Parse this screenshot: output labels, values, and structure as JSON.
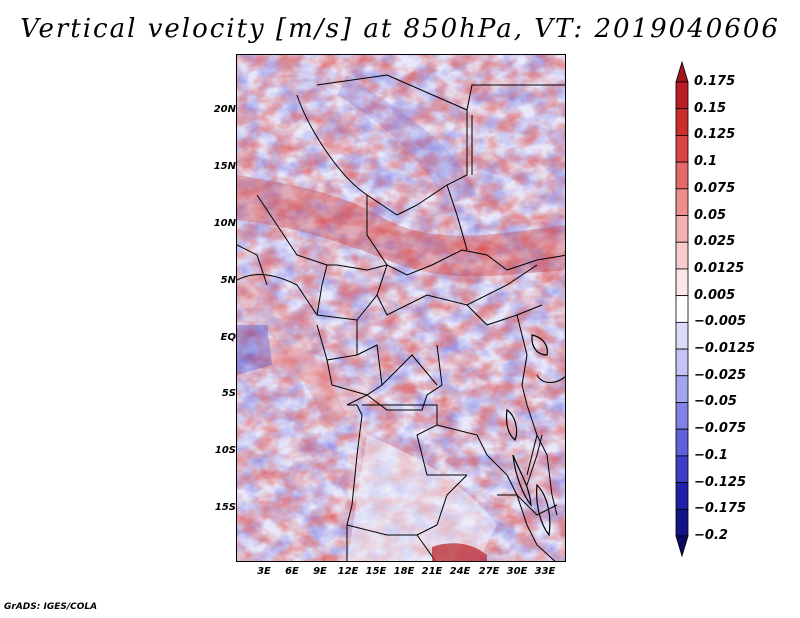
{
  "title": "Vertical velocity [m/s] at 850hPa, VT: 2019040606",
  "footer": "GrADS: IGES/COLA",
  "lat_ticks": [
    "20N",
    "15N",
    "10N",
    "5N",
    "EQ",
    "5S",
    "10S",
    "15S"
  ],
  "lon_ticks": [
    "3E",
    "6E",
    "9E",
    "12E",
    "15E",
    "18E",
    "21E",
    "24E",
    "27E",
    "30E",
    "33E"
  ],
  "colorbar": {
    "labels": [
      "0.175",
      "0.15",
      "0.125",
      "0.1",
      "0.075",
      "0.05",
      "0.025",
      "0.0125",
      "0.005",
      "−0.005",
      "−0.0125",
      "−0.025",
      "−0.05",
      "−0.075",
      "−0.1",
      "−0.125",
      "−0.175",
      "−0.2"
    ],
    "colors": [
      "#a0141e",
      "#b91e24",
      "#cc2e2e",
      "#dc4444",
      "#e46a6a",
      "#ec8e8e",
      "#f3b0b0",
      "#f8cccc",
      "#fce6e6",
      "#ffffff",
      "#dcdcf8",
      "#c4c4f4",
      "#a4a4ee",
      "#8282e4",
      "#6060d8",
      "#3e3ec6",
      "#2020aa",
      "#141488",
      "#0a0a66"
    ]
  },
  "map": {
    "extent_lon": [
      0,
      35
    ],
    "extent_lat": [
      -19,
      25
    ]
  }
}
